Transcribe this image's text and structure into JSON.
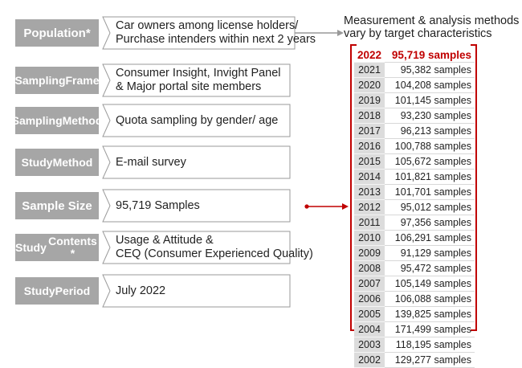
{
  "rows": [
    {
      "label": "Population*",
      "lines": [
        "Car owners among license holders/",
        "Purchase intenders within next 2 years"
      ]
    },
    {
      "label_lines": [
        "Sampling",
        "Frame"
      ],
      "lines": [
        "Consumer Insight, Invight Panel",
        "& Major portal site members"
      ]
    },
    {
      "label_lines": [
        "Sampling",
        "Method"
      ],
      "lines": [
        "Quota sampling by gender/ age"
      ]
    },
    {
      "label_lines": [
        "Study",
        "Method"
      ],
      "lines": [
        "E-mail survey"
      ]
    },
    {
      "label": "Sample Size",
      "lines": [
        "95,719 Samples"
      ]
    },
    {
      "label_lines": [
        "Study",
        "Contents *"
      ],
      "lines": [
        "Usage & Attitude &",
        "CEQ (Consumer Experienced Quality)"
      ]
    },
    {
      "label_lines": [
        "Study",
        "Period"
      ],
      "lines": [
        "July 2022"
      ]
    }
  ],
  "note": [
    "Measurement & analysis methods",
    "vary by target characteristics"
  ],
  "samples": [
    {
      "year": "2022",
      "count": "95,719 samples"
    },
    {
      "year": "2021",
      "count": "95,382 samples"
    },
    {
      "year": "2020",
      "count": "104,208 samples"
    },
    {
      "year": "2019",
      "count": "101,145 samples"
    },
    {
      "year": "2018",
      "count": "93,230 samples"
    },
    {
      "year": "2017",
      "count": "96,213 samples"
    },
    {
      "year": "2016",
      "count": "100,788 samples"
    },
    {
      "year": "2015",
      "count": "105,672 samples"
    },
    {
      "year": "2014",
      "count": "101,821 samples"
    },
    {
      "year": "2013",
      "count": "101,701 samples"
    },
    {
      "year": "2012",
      "count": "95,012 samples"
    },
    {
      "year": "2011",
      "count": "97,356 samples"
    },
    {
      "year": "2010",
      "count": "106,291 samples"
    },
    {
      "year": "2009",
      "count": "91,129 samples"
    },
    {
      "year": "2008",
      "count": "95,472 samples"
    },
    {
      "year": "2007",
      "count": "105,149 samples"
    },
    {
      "year": "2006",
      "count": "106,088 samples"
    },
    {
      "year": "2005",
      "count": "139,825 samples"
    },
    {
      "year": "2004",
      "count": "171,499 samples"
    },
    {
      "year": "2003",
      "count": "118,195 samples"
    },
    {
      "year": "2002",
      "count": "129,277 samples"
    }
  ],
  "colors": {
    "label_bg": "#a6a6a6",
    "accent": "#c00000",
    "connector": "#999999"
  }
}
